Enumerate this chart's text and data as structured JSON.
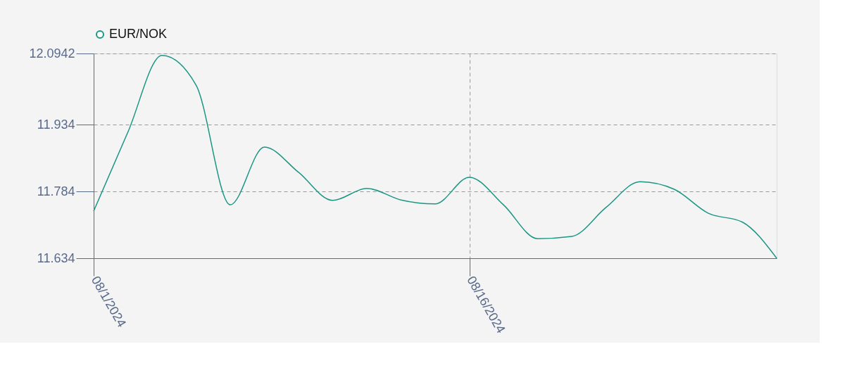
{
  "chart_data": {
    "type": "line",
    "categories": [
      "08/1/2024",
      null,
      null,
      null,
      null,
      null,
      null,
      null,
      null,
      null,
      null,
      "08/16/2024",
      null,
      null,
      null,
      null,
      null,
      null,
      null,
      null,
      null
    ],
    "series": [
      {
        "name": "EUR/NOK",
        "color": "#1a9683",
        "values": [
          11.74,
          11.917,
          12.09,
          12.023,
          11.754,
          11.884,
          11.827,
          11.764,
          11.791,
          11.765,
          11.756,
          11.816,
          11.754,
          11.678,
          11.683,
          11.748,
          11.806,
          11.789,
          11.735,
          11.715,
          11.634
        ]
      }
    ],
    "ylim": [
      11.634,
      12.0942
    ],
    "yticks": [
      11.634,
      11.784,
      11.934,
      12.0942
    ],
    "grid": true,
    "legend": "top"
  }
}
